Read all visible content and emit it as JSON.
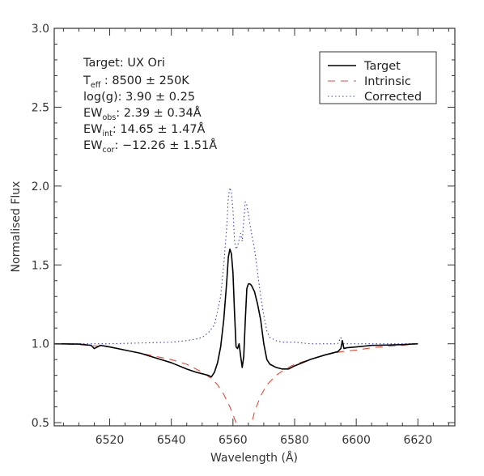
{
  "chart_data": {
    "type": "line",
    "xlabel": "Wavelength (Å)",
    "ylabel": "Normalised Flux",
    "xlim": [
      6502,
      6632
    ],
    "ylim": [
      0.48,
      3.0
    ],
    "x_ticks": [
      6520,
      6540,
      6560,
      6580,
      6600,
      6620
    ],
    "x_tick_labels": [
      "6520",
      "6540",
      "6560",
      "6580",
      "6600",
      "6620"
    ],
    "y_ticks": [
      0.5,
      1.0,
      1.5,
      2.0,
      2.5,
      3.0
    ],
    "y_tick_labels": [
      "0.5",
      "1.0",
      "1.5",
      "2.0",
      "2.5",
      "3.0"
    ],
    "grid": false,
    "legend_position": "top-right",
    "annotation": {
      "target_line": "Target: UX Ori",
      "teff_label": "T",
      "teff_sub": "eff",
      "teff_value": " :   8500  ± 250K",
      "logg_line": "log(g):   3.90  ± 0.25",
      "ewobs_label": "EW",
      "ewobs_sub": "obs",
      "ewobs_value": ":     2.39  ± 0.34Å",
      "ewint_label": "EW",
      "ewint_sub": "int",
      "ewint_value": ":     14.65  ± 1.47Å",
      "ewcor_label": "EW",
      "ewcor_sub": "cor",
      "ewcor_value": ": −12.26  ± 1.51Å"
    },
    "series": [
      {
        "name": "Target",
        "color": "#000000",
        "style": "solid",
        "x": [
          6502,
          6510,
          6514,
          6515,
          6516,
          6517,
          6520,
          6525,
          6530,
          6535,
          6540,
          6545,
          6548,
          6550,
          6552,
          6553,
          6554,
          6555,
          6556,
          6557,
          6558,
          6558.5,
          6559,
          6559.5,
          6560,
          6560.5,
          6561,
          6561.5,
          6562,
          6562.5,
          6563,
          6563.5,
          6564,
          6564.5,
          6565,
          6565.5,
          6566,
          6567,
          6568,
          6569,
          6570,
          6571,
          6572,
          6574,
          6576,
          6578,
          6580,
          6585,
          6590,
          6594,
          6595,
          6595.5,
          6596,
          6597,
          6600,
          6605,
          6610,
          6615,
          6620
        ],
        "y": [
          1.0,
          0.998,
          0.99,
          0.97,
          0.98,
          0.99,
          0.98,
          0.96,
          0.94,
          0.91,
          0.88,
          0.84,
          0.82,
          0.81,
          0.8,
          0.79,
          0.82,
          0.88,
          0.98,
          1.15,
          1.4,
          1.55,
          1.6,
          1.57,
          1.45,
          1.2,
          0.98,
          0.97,
          1.0,
          0.92,
          0.85,
          0.92,
          1.15,
          1.35,
          1.38,
          1.38,
          1.37,
          1.33,
          1.25,
          1.15,
          1.0,
          0.9,
          0.87,
          0.85,
          0.84,
          0.84,
          0.86,
          0.9,
          0.93,
          0.95,
          0.97,
          1.02,
          0.97,
          0.975,
          0.98,
          0.99,
          0.992,
          0.995,
          1.0
        ]
      },
      {
        "name": "Intrinsic",
        "color": "#e34a33",
        "style": "dashed",
        "x": [
          6502,
          6510,
          6520,
          6530,
          6540,
          6545,
          6550,
          6553,
          6555,
          6557,
          6559,
          6560,
          6561,
          6562,
          6563,
          6563.8,
          6564.5,
          6565.5,
          6567,
          6569,
          6571,
          6574,
          6577,
          6580,
          6585,
          6590,
          6595,
          6600,
          6605,
          6610,
          6615,
          6620
        ],
        "y": [
          1.0,
          0.995,
          0.98,
          0.94,
          0.9,
          0.87,
          0.82,
          0.78,
          0.74,
          0.68,
          0.6,
          0.55,
          0.5,
          0.44,
          0.36,
          0.25,
          0.35,
          0.45,
          0.57,
          0.67,
          0.74,
          0.8,
          0.84,
          0.87,
          0.9,
          0.93,
          0.95,
          0.96,
          0.975,
          0.985,
          0.99,
          1.0
        ]
      },
      {
        "name": "Corrected",
        "color": "#3b44c4",
        "style": "dotted",
        "x": [
          6502,
          6510,
          6520,
          6530,
          6540,
          6545,
          6548,
          6550,
          6552,
          6554,
          6556,
          6557,
          6558,
          6558.5,
          6559,
          6559.5,
          6560,
          6560.5,
          6561,
          6561.5,
          6562,
          6562.5,
          6563,
          6563.5,
          6564,
          6564.5,
          6565,
          6565.5,
          6566,
          6567,
          6568,
          6569,
          6570,
          6571,
          6572,
          6574,
          6576,
          6580,
          6585,
          6590,
          6594,
          6595,
          6595.5,
          6596,
          6597,
          6600,
          6610,
          6620
        ],
        "y": [
          1.0,
          1.0,
          1.0,
          1.005,
          1.01,
          1.02,
          1.03,
          1.04,
          1.07,
          1.12,
          1.3,
          1.5,
          1.75,
          1.93,
          1.99,
          1.96,
          1.85,
          1.65,
          1.6,
          1.62,
          1.66,
          1.7,
          1.65,
          1.78,
          1.9,
          1.88,
          1.82,
          1.76,
          1.7,
          1.6,
          1.45,
          1.3,
          1.18,
          1.08,
          1.04,
          1.02,
          1.01,
          1.01,
          1.0,
          1.0,
          1.0,
          1.04,
          1.0,
          1.0,
          1.0,
          1.0,
          1.0,
          1.0
        ]
      }
    ]
  }
}
